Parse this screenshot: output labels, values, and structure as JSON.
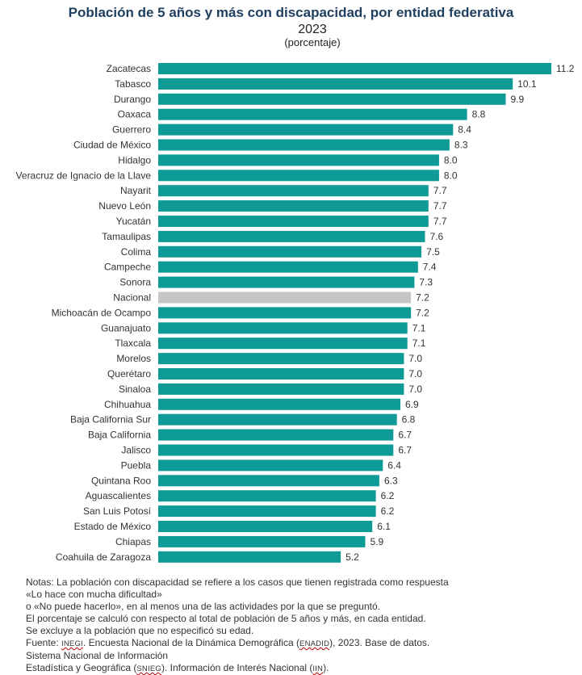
{
  "chart_data": {
    "type": "bar",
    "orientation": "horizontal",
    "title": "Población de 5 años y más con discapacidad, por entidad federativa",
    "subtitle": "2023",
    "unit_label": "(porcentaje)",
    "categories": [
      "Zacatecas",
      "Tabasco",
      "Durango",
      "Oaxaca",
      "Guerrero",
      "Ciudad de México",
      "Hidalgo",
      "Veracruz de Ignacio de la Llave",
      "Nayarit",
      "Nuevo León",
      "Yucatán",
      "Tamaulipas",
      "Colima",
      "Campeche",
      "Sonora",
      "Nacional",
      "Michoacán de Ocampo",
      "Guanajuato",
      "Tlaxcala",
      "Morelos",
      "Querétaro",
      "Sinaloa",
      "Chihuahua",
      "Baja California Sur",
      "Baja California",
      "Jalisco",
      "Puebla",
      "Quintana Roo",
      "Aguascalientes",
      "San Luis Potosí",
      "Estado de México",
      "Chiapas",
      "Coahuila de Zaragoza"
    ],
    "values": [
      11.2,
      10.1,
      9.9,
      8.8,
      8.4,
      8.3,
      8.0,
      8.0,
      7.7,
      7.7,
      7.7,
      7.6,
      7.5,
      7.4,
      7.3,
      7.2,
      7.2,
      7.1,
      7.1,
      7.0,
      7.0,
      7.0,
      6.9,
      6.8,
      6.7,
      6.7,
      6.4,
      6.3,
      6.2,
      6.2,
      6.1,
      5.9,
      5.2
    ],
    "value_labels": [
      "11.2",
      "10.1",
      "9.9",
      "8.8",
      "8.4",
      "8.3",
      "8.0",
      "8.0",
      "7.7",
      "7.7",
      "7.7",
      "7.6",
      "7.5",
      "7.4",
      "7.3",
      "7.2",
      "7.2",
      "7.1",
      "7.1",
      "7.0",
      "7.0",
      "7.0",
      "6.9",
      "6.8",
      "6.7",
      "6.7",
      "6.4",
      "6.3",
      "6.2",
      "6.2",
      "6.1",
      "5.9",
      "5.2"
    ],
    "xlim": [
      0,
      11.2
    ],
    "highlight_category": "Nacional",
    "colors": {
      "bar": "#0e9a97",
      "highlight": "#c6c6c6",
      "title": "#1f3f5f"
    },
    "grid": false,
    "legend": "none"
  },
  "notes": {
    "line1": "Notas:    La población con discapacidad se refiere a los casos que tienen registrada como respuesta",
    "line2": "«Lo hace con mucha dificultad»",
    "line3": " o «No puede hacerlo», en al menos una de las actividades por la que se preguntó.",
    "line4": " El porcentaje se calculó con respecto al total de población de 5 años y más, en cada entidad.",
    "line5": " Se excluye a la población que no especificó su edad.",
    "line6_pre": "Fuente: ",
    "line6_inegi": "INEGI",
    "line6_mid": ". Encuesta Nacional de la Dinámica Demográfica (",
    "line6_enadid": "ENADID",
    "line6_post": "), 2023. Base de datos.",
    "line7": "Sistema Nacional de Información",
    "line8_pre": " Estadística y Geográfica (",
    "line8_snieg": "SNIEG",
    "line8_mid": "). Información de Interés Nacional (",
    "line8_iin": "IIN",
    "line8_post": ")."
  }
}
